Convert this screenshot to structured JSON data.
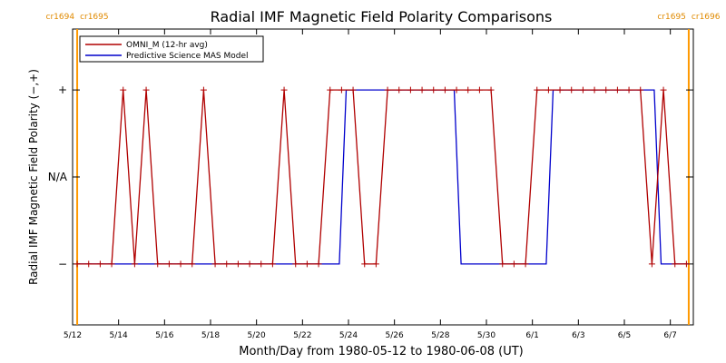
{
  "chart_data": {
    "type": "line",
    "title": "Radial IMF Magnetic Field Polarity Comparisons",
    "xlabel": "Month/Day from 1980-05-12 to 1980-06-08 (UT)",
    "ylabel": "Radial IMF Magnetic Field Polarity (−,+)",
    "x_unit": "days from 1980-05-12",
    "xlim": [
      0,
      27
    ],
    "ylim": [
      -1.7,
      1.7
    ],
    "grid": false,
    "legend_position": "top-left",
    "x_ticks": [
      {
        "x": 0,
        "label": "5/12"
      },
      {
        "x": 2,
        "label": "5/14"
      },
      {
        "x": 4,
        "label": "5/16"
      },
      {
        "x": 6,
        "label": "5/18"
      },
      {
        "x": 8,
        "label": "5/20"
      },
      {
        "x": 10,
        "label": "5/22"
      },
      {
        "x": 12,
        "label": "5/24"
      },
      {
        "x": 14,
        "label": "5/26"
      },
      {
        "x": 16,
        "label": "5/28"
      },
      {
        "x": 18,
        "label": "5/30"
      },
      {
        "x": 20,
        "label": "6/1"
      },
      {
        "x": 22,
        "label": "6/3"
      },
      {
        "x": 24,
        "label": "6/5"
      },
      {
        "x": 26,
        "label": "6/7"
      }
    ],
    "y_ticks": [
      {
        "y": 1,
        "label": "+"
      },
      {
        "y": 0,
        "label": "N/A"
      },
      {
        "y": -1,
        "label": "−"
      }
    ],
    "carrington_markers": [
      {
        "x": 0.2,
        "left_label": "cr1694",
        "right_label": "cr1695"
      },
      {
        "x": 26.8,
        "left_label": "cr1695",
        "right_label": "cr1696"
      }
    ],
    "series": [
      {
        "name": "OMNI_M (12-hr avg)",
        "color": "#b00000",
        "marker": "+",
        "x": [
          0.2,
          0.7,
          1.2,
          1.7,
          2.2,
          2.7,
          3.2,
          3.7,
          4.2,
          4.7,
          5.2,
          5.7,
          6.2,
          6.7,
          7.2,
          7.7,
          8.2,
          8.7,
          9.2,
          9.7,
          10.2,
          10.7,
          11.2,
          11.7,
          12.2,
          12.7,
          13.2,
          13.7,
          14.2,
          14.7,
          15.2,
          15.7,
          16.2,
          16.7,
          17.2,
          17.7,
          18.2,
          18.7,
          19.2,
          19.7,
          20.2,
          20.7,
          21.2,
          21.7,
          22.2,
          22.7,
          23.2,
          23.7,
          24.2,
          24.7,
          25.2,
          25.7,
          26.2,
          26.7
        ],
        "y": [
          -1,
          -1,
          -1,
          -1,
          1,
          -1,
          1,
          -1,
          -1,
          -1,
          -1,
          1,
          -1,
          -1,
          -1,
          -1,
          -1,
          -1,
          1,
          -1,
          -1,
          -1,
          1,
          1,
          1,
          -1,
          -1,
          1,
          1,
          1,
          1,
          1,
          1,
          1,
          1,
          1,
          1,
          -1,
          -1,
          -1,
          1,
          1,
          1,
          1,
          1,
          1,
          1,
          1,
          1,
          1,
          -1,
          1,
          -1,
          -1
        ]
      },
      {
        "name": "Predictive Science MAS Model",
        "color": "#0000cc",
        "marker": "none",
        "x": [
          0.2,
          11.6,
          11.9,
          16.6,
          16.9,
          20.6,
          20.9,
          25.3,
          25.6,
          26.8
        ],
        "y": [
          -1,
          -1,
          1,
          1,
          -1,
          -1,
          1,
          1,
          -1,
          -1
        ]
      }
    ]
  }
}
